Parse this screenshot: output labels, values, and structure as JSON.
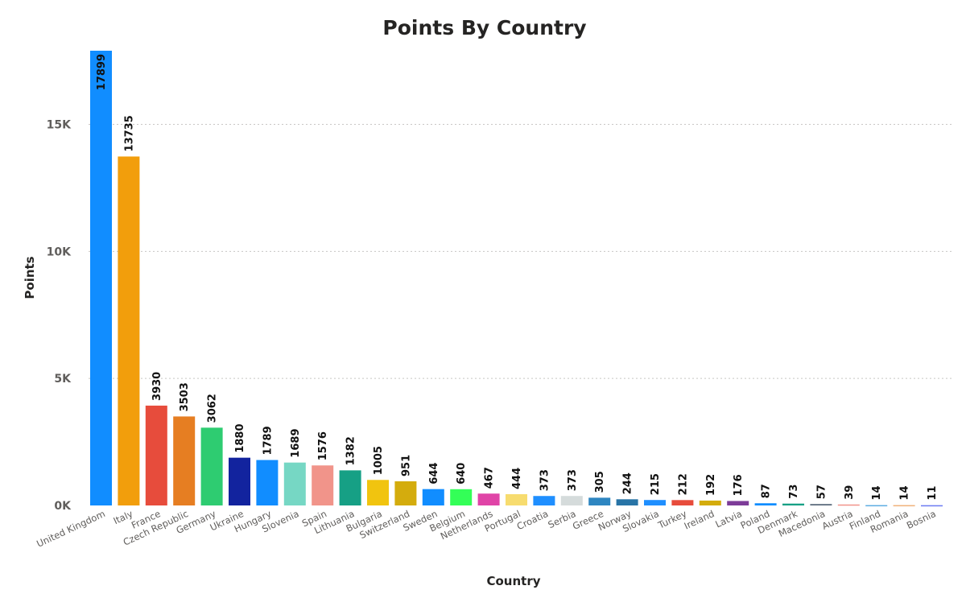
{
  "chart_data": {
    "type": "bar",
    "title": "Points By Country",
    "xlabel": "Country",
    "ylabel": "Points",
    "ylim": [
      0,
      17899
    ],
    "yticks": [
      0,
      5000,
      10000,
      15000
    ],
    "ytick_labels": [
      "0K",
      "5K",
      "10K",
      "15K"
    ],
    "grid": true,
    "categories": [
      "United Kingdom",
      "Italy",
      "France",
      "Czech Republic",
      "Germany",
      "Ukraine",
      "Hungary",
      "Slovenia",
      "Spain",
      "Lithuania",
      "Bulgaria",
      "Switzerland",
      "Sweden",
      "Belgium",
      "Netherlands",
      "Portugal",
      "Croatia",
      "Serbia",
      "Greece",
      "Norway",
      "Slovakia",
      "Turkey",
      "Ireland",
      "Latvia",
      "Poland",
      "Denmark",
      "Macedonia",
      "Austria",
      "Finland",
      "Romania",
      "Bosnia"
    ],
    "values": [
      17899,
      13735,
      3930,
      3503,
      3062,
      1880,
      1789,
      1689,
      1576,
      1382,
      1005,
      951,
      644,
      640,
      467,
      444,
      373,
      373,
      305,
      244,
      215,
      212,
      192,
      176,
      87,
      73,
      57,
      39,
      14,
      14,
      11
    ],
    "colors": [
      "#118DFF",
      "#F29E0C",
      "#E74C3C",
      "#E67E22",
      "#2ECC71",
      "#12239E",
      "#118DFF",
      "#76D7C4",
      "#F1948A",
      "#16A085",
      "#F1C40F",
      "#D4AC0D",
      "#118DFF",
      "#33FF57",
      "#E044A7",
      "#F7DC6F",
      "#1F8FFF",
      "#D5DBDB",
      "#2E86C1",
      "#2874A6",
      "#1F8FFF",
      "#E74C3C",
      "#D4AC0D",
      "#7D3C98",
      "#118DFF",
      "#16A085",
      "#5D6D7E",
      "#F1948A",
      "#5DADE2",
      "#F0B27A",
      "#6C7BF2"
    ]
  }
}
